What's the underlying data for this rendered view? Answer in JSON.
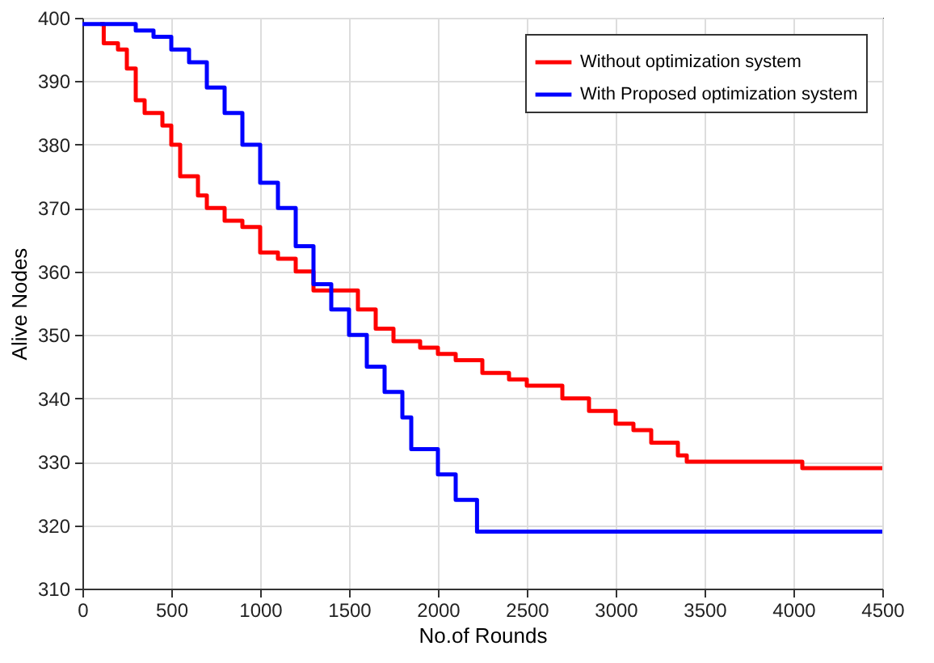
{
  "chart_data": {
    "type": "step",
    "xlabel": "No.of Rounds",
    "ylabel": "Alive Nodes",
    "xlim": [
      0,
      4500
    ],
    "xticks": [
      0,
      500,
      1000,
      1500,
      2000,
      2500,
      3000,
      3500,
      4000,
      4500
    ],
    "ylim": [
      310,
      400
    ],
    "yticks": [
      310,
      320,
      330,
      340,
      350,
      360,
      370,
      380,
      390,
      400
    ],
    "grid": true,
    "legend": "top right",
    "line_style": "solid",
    "marker": "none",
    "series": [
      {
        "name": "Without optimization system",
        "color": "#ff0000",
        "x": [
          100,
          120,
          200,
          250,
          300,
          350,
          450,
          500,
          550,
          650,
          700,
          800,
          900,
          1000,
          1100,
          1200,
          1300,
          1500,
          1550,
          1650,
          1750,
          1900,
          2000,
          2100,
          2250,
          2400,
          2500,
          2700,
          2850,
          3000,
          3100,
          3200,
          3350,
          3400,
          4000,
          4050,
          4500
        ],
        "values": [
          399,
          396,
          395,
          392,
          387,
          385,
          383,
          380,
          375,
          372,
          370,
          368,
          367,
          363,
          362,
          360,
          357,
          357,
          354,
          351,
          349,
          348,
          347,
          346,
          344,
          343,
          342,
          340,
          338,
          336,
          335,
          333,
          331,
          330,
          330,
          329,
          329
        ]
      },
      {
        "name": "With Proposed optimization system",
        "color": "#0000ff",
        "x": [
          0,
          270,
          300,
          400,
          500,
          600,
          700,
          800,
          900,
          1000,
          1100,
          1200,
          1300,
          1400,
          1500,
          1600,
          1700,
          1800,
          1850,
          2000,
          2100,
          2220,
          4500
        ],
        "values": [
          399,
          399,
          398,
          397,
          395,
          393,
          389,
          385,
          380,
          374,
          370,
          364,
          358,
          354,
          350,
          345,
          341,
          337,
          332,
          328,
          324,
          319,
          319
        ]
      }
    ]
  }
}
